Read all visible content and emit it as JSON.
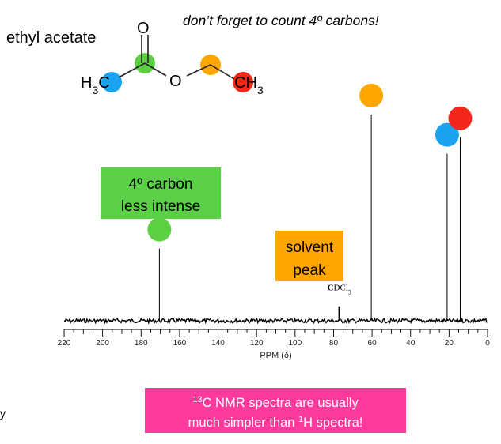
{
  "molecule": {
    "name": "ethyl acetate",
    "atoms": {
      "o_carbonyl": "O",
      "o_ester": "O",
      "methyl_left": "H3C",
      "methyl_right": "CH3"
    },
    "colors": {
      "green": "#5bd142",
      "blue": "#1aa4f0",
      "orange": "#ffa600",
      "red": "#f3281b"
    }
  },
  "reminder": "don’t forget to count 4º carbons!",
  "callouts": {
    "quaternary": {
      "line1": "4º carbon",
      "line2": "less intense",
      "color": "#59d046"
    },
    "solvent": {
      "line1": "solvent",
      "line2": "peak",
      "color": "#ffa600"
    },
    "bottom": {
      "line1": "13C NMR spectra are usually",
      "line2": "much simpler than 1H spectra!",
      "color": "#ff3a9d"
    }
  },
  "edge_fragment": "y",
  "chart_data": {
    "type": "line",
    "title": "",
    "xlabel": "PPM (δ)",
    "ylabel": "",
    "xlim": [
      220,
      0
    ],
    "x_reversed": true,
    "x_ticks": [
      220,
      200,
      180,
      160,
      140,
      120,
      100,
      80,
      60,
      40,
      20,
      0
    ],
    "grid": false,
    "peaks": [
      {
        "ppm": 170.5,
        "relative_height": 0.35,
        "marker_color": "#5bd142",
        "label": ""
      },
      {
        "ppm": 77.0,
        "relative_height": 0.07,
        "marker_color": "",
        "label": "CDCl3"
      },
      {
        "ppm": 60.4,
        "relative_height": 1.0,
        "marker_color": "#ffa600",
        "label": ""
      },
      {
        "ppm": 21.0,
        "relative_height": 0.81,
        "marker_color": "#1aa4f0",
        "label": ""
      },
      {
        "ppm": 14.2,
        "relative_height": 0.89,
        "marker_color": "#f3281b",
        "label": ""
      }
    ]
  }
}
